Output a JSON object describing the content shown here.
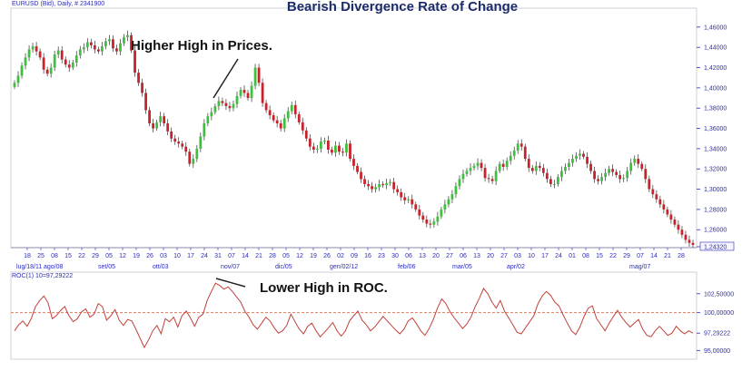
{
  "chart_data": [
    {
      "type": "candlestick",
      "title": "Bearish Divergence Rate of Change",
      "header": "EURUSD (Bid), Daily, # 2341900",
      "annotation": "Higher High in Prices.",
      "ylim": [
        1.2432,
        1.476
      ],
      "yticks": [
        "1,46000",
        "1,44000",
        "1,42000",
        "1,40000",
        "1,38000",
        "1,36000",
        "1,34000",
        "1,32000",
        "1,30000",
        "1,28000",
        "1,26000",
        "1,24320"
      ],
      "x_day_labels": [
        "18",
        "25",
        "08",
        "15",
        "22",
        "29",
        "05",
        "12",
        "19",
        "26",
        "03",
        "10",
        "17",
        "24",
        "31",
        "07",
        "14",
        "21",
        "28",
        "05",
        "12",
        "19",
        "26",
        "02",
        "09",
        "16",
        "23",
        "30",
        "06",
        "13",
        "20",
        "27",
        "06",
        "13",
        "20",
        "27",
        "03",
        "10",
        "17",
        "24",
        "01",
        "08",
        "15",
        "22",
        "29",
        "07",
        "14",
        "21",
        "28"
      ],
      "x_month_labels": [
        "lug/18/11",
        "ago/08",
        "set/05",
        "ott/03",
        "nov/07",
        "dic/05",
        "gen/02/12",
        "feb/06",
        "mar/05",
        "apr/02",
        "mag/07"
      ],
      "close": [
        1.405,
        1.412,
        1.422,
        1.43,
        1.438,
        1.441,
        1.436,
        1.43,
        1.418,
        1.414,
        1.42,
        1.433,
        1.437,
        1.428,
        1.423,
        1.42,
        1.425,
        1.432,
        1.438,
        1.44,
        1.445,
        1.442,
        1.438,
        1.436,
        1.441,
        1.446,
        1.448,
        1.439,
        1.436,
        1.444,
        1.45,
        1.452,
        1.437,
        1.415,
        1.405,
        1.395,
        1.378,
        1.365,
        1.36,
        1.366,
        1.372,
        1.365,
        1.357,
        1.35,
        1.347,
        1.345,
        1.342,
        1.337,
        1.325,
        1.33,
        1.34,
        1.352,
        1.365,
        1.372,
        1.376,
        1.382,
        1.387,
        1.385,
        1.382,
        1.38,
        1.384,
        1.392,
        1.398,
        1.395,
        1.39,
        1.402,
        1.42,
        1.405,
        1.385,
        1.378,
        1.373,
        1.368,
        1.365,
        1.36,
        1.37,
        1.377,
        1.383,
        1.374,
        1.366,
        1.358,
        1.35,
        1.342,
        1.339,
        1.34,
        1.347,
        1.348,
        1.339,
        1.336,
        1.343,
        1.337,
        1.336,
        1.345,
        1.33,
        1.323,
        1.317,
        1.31,
        1.305,
        1.303,
        1.3,
        1.302,
        1.305,
        1.304,
        1.306,
        1.307,
        1.3,
        1.297,
        1.292,
        1.289,
        1.29,
        1.285,
        1.28,
        1.274,
        1.27,
        1.266,
        1.265,
        1.268,
        1.273,
        1.28,
        1.285,
        1.29,
        1.295,
        1.303,
        1.31,
        1.315,
        1.318,
        1.321,
        1.323,
        1.326,
        1.321,
        1.311,
        1.31,
        1.308,
        1.318,
        1.325,
        1.322,
        1.328,
        1.333,
        1.338,
        1.345,
        1.342,
        1.33,
        1.321,
        1.318,
        1.323,
        1.321,
        1.316,
        1.31,
        1.305,
        1.305,
        1.312,
        1.318,
        1.322,
        1.326,
        1.33,
        1.333,
        1.335,
        1.332,
        1.325,
        1.318,
        1.31,
        1.308,
        1.312,
        1.316,
        1.32,
        1.317,
        1.314,
        1.31,
        1.311,
        1.318,
        1.326,
        1.33,
        1.325,
        1.32,
        1.31,
        1.3,
        1.295,
        1.29,
        1.285,
        1.28,
        1.275,
        1.27,
        1.265,
        1.26,
        1.255,
        1.25,
        1.247,
        1.245
      ]
    },
    {
      "type": "line",
      "title": "ROC(1) 10=97,29222",
      "annotation": "Lower High in ROC.",
      "ylim": [
        94.2,
        105.0
      ],
      "yticks": [
        "102,50000",
        "100,00000",
        "97,29222",
        "95,00000"
      ],
      "reference_line": 100.0,
      "values": [
        97.6,
        98.4,
        98.9,
        98.2,
        99.2,
        100.8,
        101.6,
        102.2,
        101.3,
        99.2,
        99.6,
        100.3,
        100.8,
        99.6,
        98.8,
        99.2,
        100.1,
        100.5,
        99.4,
        99.8,
        101.2,
        100.8,
        99.0,
        99.6,
        100.4,
        99.0,
        98.3,
        99.1,
        98.9,
        97.8,
        96.6,
        95.4,
        96.4,
        97.6,
        98.3,
        97.2,
        99.2,
        98.8,
        99.4,
        98.1,
        99.6,
        100.2,
        99.3,
        98.2,
        99.4,
        99.8,
        101.6,
        102.8,
        103.9,
        103.6,
        103.1,
        103.4,
        102.8,
        102.1,
        101.4,
        100.2,
        99.4,
        98.4,
        97.8,
        98.6,
        99.4,
        98.9,
        98.0,
        97.3,
        97.6,
        98.3,
        99.8,
        98.8,
        97.8,
        97.2,
        98.2,
        98.6,
        97.6,
        96.8,
        97.4,
        98.0,
        98.7,
        97.6,
        96.9,
        97.6,
        98.9,
        99.6,
        100.2,
        99.0,
        98.4,
        97.6,
        98.1,
        98.8,
        99.5,
        98.9,
        98.3,
        97.7,
        97.2,
        97.8,
        98.9,
        99.3,
        98.5,
        97.6,
        97.0,
        97.9,
        99.1,
        100.6,
        101.8,
        101.2,
        100.1,
        99.3,
        98.6,
        97.9,
        98.5,
        99.4,
        100.8,
        101.9,
        103.2,
        102.5,
        101.4,
        100.6,
        101.6,
        100.2,
        99.3,
        98.4,
        97.4,
        97.2,
        98.0,
        98.8,
        99.6,
        101.2,
        102.2,
        102.8,
        102.3,
        101.4,
        100.9,
        99.7,
        98.6,
        97.6,
        97.1,
        98.1,
        99.5,
        100.6,
        100.9,
        99.2,
        98.4,
        97.6,
        98.6,
        99.5,
        100.3,
        99.4,
        98.7,
        98.1,
        98.6,
        99.1,
        97.8,
        97.0,
        96.8,
        97.6,
        98.2,
        97.6,
        97.0,
        97.3,
        98.2,
        97.6,
        97.2,
        97.6,
        97.3
      ]
    }
  ]
}
